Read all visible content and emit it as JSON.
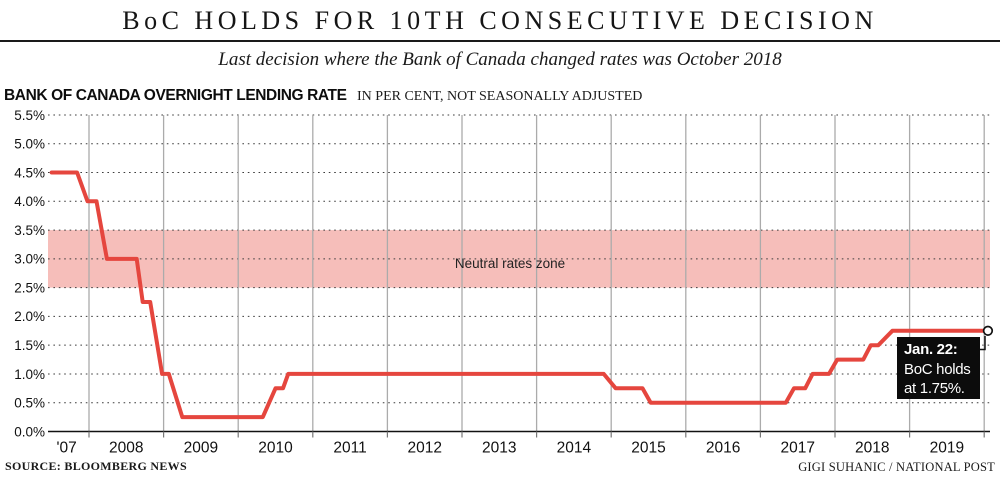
{
  "header": {
    "title": "BoC HOLDS FOR 10TH CONSECUTIVE DECISION",
    "subtitle": "Last decision where the Bank of Canada changed rates was October 2018"
  },
  "chart_header": {
    "title": "BANK OF CANADA OVERNIGHT LENDING RATE",
    "note": "IN PER CENT, NOT SEASONALLY ADJUSTED"
  },
  "footer": {
    "source": "SOURCE: BLOOMBERG NEWS",
    "credit": "GIGI SUHANIC / NATIONAL POST"
  },
  "chart_data": {
    "type": "line",
    "title": "BANK OF CANADA OVERNIGHT LENDING RATE",
    "ylabel": "per cent, not seasonally adjusted",
    "xlabel": "",
    "ylim": [
      0,
      5.5
    ],
    "x_range": [
      2007.45,
      2020.08
    ],
    "grid": "horizontal dotted, vertical year lines",
    "legend": "none",
    "y_ticks": [
      {
        "label": "5.5%",
        "value": 5.5
      },
      {
        "label": "5.0%",
        "value": 5.0
      },
      {
        "label": "4.5%",
        "value": 4.5
      },
      {
        "label": "4.0%",
        "value": 4.0
      },
      {
        "label": "3.5%",
        "value": 3.5
      },
      {
        "label": "3.0%",
        "value": 3.0
      },
      {
        "label": "2.5%",
        "value": 2.5
      },
      {
        "label": "2.0%",
        "value": 2.0
      },
      {
        "label": "1.5%",
        "value": 1.5
      },
      {
        "label": "1.0%",
        "value": 1.0
      },
      {
        "label": "0.5%",
        "value": 0.5
      },
      {
        "label": "0.0%",
        "value": 0.0
      }
    ],
    "x_ticks": [
      {
        "label": "'07",
        "year": 2007.7
      },
      {
        "label": "2008",
        "year": 2008.5
      },
      {
        "label": "2009",
        "year": 2009.5
      },
      {
        "label": "2010",
        "year": 2010.5
      },
      {
        "label": "2011",
        "year": 2011.5
      },
      {
        "label": "2012",
        "year": 2012.5
      },
      {
        "label": "2013",
        "year": 2013.5
      },
      {
        "label": "2014",
        "year": 2014.5
      },
      {
        "label": "2015",
        "year": 2015.5
      },
      {
        "label": "2016",
        "year": 2016.5
      },
      {
        "label": "2017",
        "year": 2017.5
      },
      {
        "label": "2018",
        "year": 2018.5
      },
      {
        "label": "2019",
        "year": 2019.5
      }
    ],
    "year_gridlines": [
      2008,
      2009,
      2010,
      2011,
      2012,
      2013,
      2014,
      2015,
      2016,
      2017,
      2018,
      2019,
      2020
    ],
    "neutral_zone": {
      "label": "Neutral rates zone",
      "from": 2.5,
      "to": 3.5,
      "color": "#f6beba"
    },
    "series": [
      {
        "name": "Bank of Canada overnight lending rate",
        "color": "#e5463e",
        "points": [
          [
            2007.5,
            4.5
          ],
          [
            2007.84,
            4.5
          ],
          [
            2007.98,
            4.0
          ],
          [
            2008.1,
            4.0
          ],
          [
            2008.24,
            3.0
          ],
          [
            2008.64,
            3.0
          ],
          [
            2008.72,
            2.25
          ],
          [
            2008.82,
            2.25
          ],
          [
            2008.98,
            1.0
          ],
          [
            2009.07,
            1.0
          ],
          [
            2009.25,
            0.25
          ],
          [
            2010.33,
            0.25
          ],
          [
            2010.5,
            0.75
          ],
          [
            2010.6,
            0.75
          ],
          [
            2010.67,
            1.0
          ],
          [
            2014.9,
            1.0
          ],
          [
            2015.06,
            0.75
          ],
          [
            2015.42,
            0.75
          ],
          [
            2015.53,
            0.5
          ],
          [
            2017.34,
            0.5
          ],
          [
            2017.45,
            0.75
          ],
          [
            2017.6,
            0.75
          ],
          [
            2017.7,
            1.0
          ],
          [
            2017.92,
            1.0
          ],
          [
            2018.03,
            1.25
          ],
          [
            2018.38,
            1.25
          ],
          [
            2018.48,
            1.5
          ],
          [
            2018.58,
            1.5
          ],
          [
            2018.77,
            1.75
          ],
          [
            2020.05,
            1.75
          ]
        ]
      }
    ],
    "end_marker": {
      "year": 2020.05,
      "rate": 1.75
    },
    "annotation": {
      "line1": "Jan. 22:",
      "line2": "BoC holds",
      "line3": "at 1.75%."
    }
  }
}
